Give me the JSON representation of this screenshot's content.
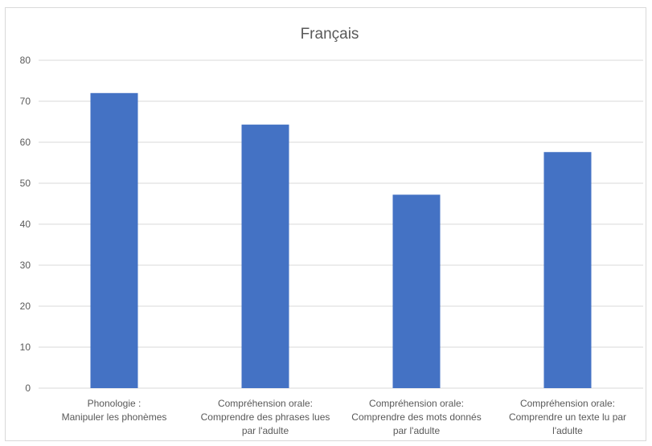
{
  "chart_data": {
    "type": "bar",
    "title": "Français",
    "xlabel": "",
    "ylabel": "",
    "ylim": [
      0,
      80
    ],
    "yticks": [
      0,
      10,
      20,
      30,
      40,
      50,
      60,
      70,
      80
    ],
    "grid": true,
    "legend": "none",
    "categories": [
      [
        "Phonologie :",
        "Manipuler les phonèmes"
      ],
      [
        "Compréhension orale:",
        "Comprendre des phrases lues",
        "par l'adulte"
      ],
      [
        "Compréhension orale:",
        "Comprendre des mots donnés",
        "par l'adulte"
      ],
      [
        "Compréhension orale:",
        "Comprendre un texte lu par",
        "l'adulte"
      ]
    ],
    "values": [
      72,
      64.3,
      47.2,
      57.6
    ],
    "colors": {
      "bar": "#4472c4",
      "grid": "#d9d9d9",
      "text": "#595959"
    }
  }
}
